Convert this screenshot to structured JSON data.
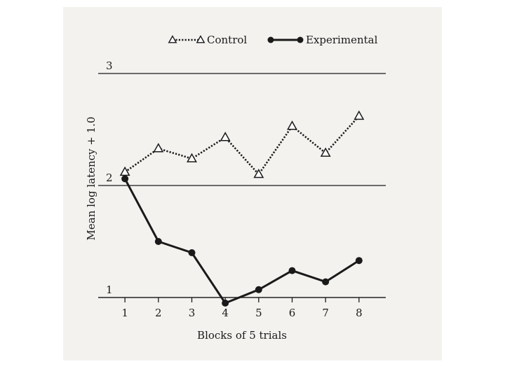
{
  "chart_data": {
    "type": "line",
    "title": "",
    "xlabel": "Blocks of 5 trials",
    "ylabel": "Mean log latency + 1.0",
    "x": [
      1,
      2,
      3,
      4,
      5,
      6,
      7,
      8
    ],
    "xlim": [
      0.2,
      8.8
    ],
    "ylim": [
      0.75,
      3.25
    ],
    "yticks": [
      1,
      2,
      3
    ],
    "xticks": [
      1,
      2,
      3,
      4,
      5,
      6,
      7,
      8
    ],
    "reference_lines_at_y": [
      1,
      2,
      3
    ],
    "legend_position": "top-center",
    "series": [
      {
        "name": "Control",
        "marker": "open-triangle",
        "line_style": "dotted",
        "values": [
          2.12,
          2.33,
          2.24,
          2.43,
          2.1,
          2.53,
          2.29,
          2.62
        ]
      },
      {
        "name": "Experimental",
        "marker": "filled-circle",
        "line_style": "solid",
        "values": [
          2.06,
          1.5,
          1.4,
          0.95,
          1.07,
          1.24,
          1.14,
          1.33
        ]
      }
    ]
  }
}
